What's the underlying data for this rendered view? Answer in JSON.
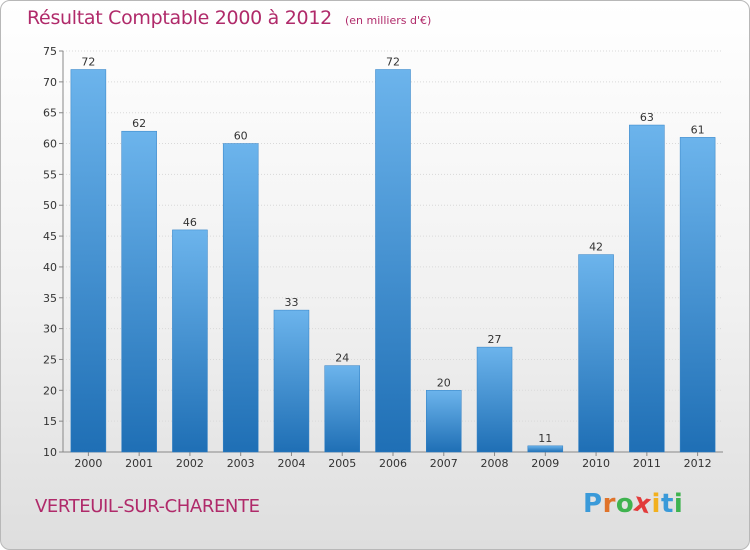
{
  "title": "Résultat Comptable 2000 à 2012",
  "subtitle": "(en milliers d'€)",
  "commune": "VERTEUIL-SUR-CHARENTE",
  "logo": {
    "letters": [
      "P",
      "r",
      "o",
      "x",
      "i",
      "t",
      "i"
    ],
    "colors": [
      "#3a9ad9",
      "#e0732a",
      "#3fb34f",
      "#e23b3b",
      "#f2b01e",
      "#3a9ad9",
      "#3fb34f"
    ]
  },
  "colors": {
    "bar": "#4a9ee0",
    "bar_light": "#6cb4ec",
    "bar_dark": "#1f6fb5",
    "title": "#b02a6a"
  },
  "chart_data": {
    "type": "bar",
    "title": "Résultat Comptable 2000 à 2012",
    "subtitle": "(en milliers d'€)",
    "xlabel": "",
    "ylabel": "",
    "categories": [
      "2000",
      "2001",
      "2002",
      "2003",
      "2004",
      "2005",
      "2006",
      "2007",
      "2008",
      "2009",
      "2010",
      "2011",
      "2012"
    ],
    "values": [
      72,
      62,
      46,
      60,
      33,
      24,
      72,
      20,
      27,
      11,
      42,
      63,
      61
    ],
    "ylim": [
      10,
      75
    ],
    "yticks": [
      10,
      15,
      20,
      25,
      30,
      35,
      40,
      45,
      50,
      55,
      60,
      65,
      70,
      75
    ],
    "grid": true
  }
}
